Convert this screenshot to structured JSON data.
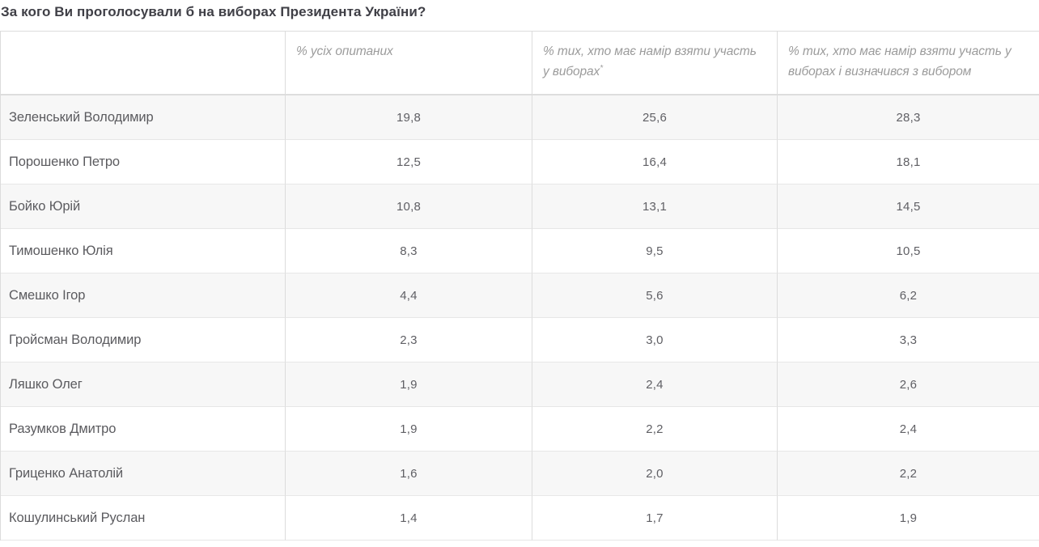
{
  "page": {
    "title": "За кого Ви проголосували б на виборах Президента України?"
  },
  "table": {
    "headers": [
      "",
      "% усіх опитаних",
      "% тих, хто має намір взяти участь у виборах",
      "% тих, хто має намір взяти участь у виборах і визначився з вибором"
    ],
    "header_footnote_mark": "*",
    "rows": [
      {
        "name": "Зеленський Володимир",
        "values": [
          "19,8",
          "25,6",
          "28,3"
        ]
      },
      {
        "name": "Порошенко Петро",
        "values": [
          "12,5",
          "16,4",
          "18,1"
        ]
      },
      {
        "name": "Бойко Юрій",
        "values": [
          "10,8",
          "13,1",
          "14,5"
        ]
      },
      {
        "name": "Тимошенко Юлія",
        "values": [
          "8,3",
          "9,5",
          "10,5"
        ]
      },
      {
        "name": "Смешко Ігор",
        "values": [
          "4,4",
          "5,6",
          "6,2"
        ]
      },
      {
        "name": "Гройсман Володимир",
        "values": [
          "2,3",
          "3,0",
          "3,3"
        ]
      },
      {
        "name": "Ляшко Олег",
        "values": [
          "1,9",
          "2,4",
          "2,6"
        ]
      },
      {
        "name": "Разумков Дмитро",
        "values": [
          "1,9",
          "2,2",
          "2,4"
        ]
      },
      {
        "name": "Гриценко Анатолій",
        "values": [
          "1,6",
          "2,0",
          "2,2"
        ]
      },
      {
        "name": "Кошулинський Руслан",
        "values": [
          "1,4",
          "1,7",
          "1,9"
        ]
      }
    ]
  },
  "colors": {
    "zebra_row": "#f7f7f7",
    "grid_border": "#dcdcdc",
    "row_separator": "#e7e7e7",
    "title_text": "#3f3f46",
    "header_text": "#9b9b9b",
    "cell_text": "#5b5b5f"
  },
  "chart_data": {
    "type": "table",
    "title": "За кого Ви проголосували б на виборах Президента України?",
    "categories": [
      "Зеленський Володимир",
      "Порошенко Петро",
      "Бойко Юрій",
      "Тимошенко Юлія",
      "Смешко Ігор",
      "Гройсман Володимир",
      "Ляшко Олег",
      "Разумков Дмитро",
      "Гриценко Анатолій",
      "Кошулинський Руслан"
    ],
    "series": [
      {
        "name": "% усіх опитаних",
        "values": [
          19.8,
          12.5,
          10.8,
          8.3,
          4.4,
          2.3,
          1.9,
          1.9,
          1.6,
          1.4
        ]
      },
      {
        "name": "% тих, хто має намір взяти участь у виборах*",
        "values": [
          25.6,
          16.4,
          13.1,
          9.5,
          5.6,
          3.0,
          2.4,
          2.2,
          2.0,
          1.7
        ]
      },
      {
        "name": "% тих, хто має намір взяти участь у виборах і визначився з вибором",
        "values": [
          28.3,
          18.1,
          14.5,
          10.5,
          6.2,
          3.3,
          2.6,
          2.4,
          2.2,
          1.9
        ]
      }
    ]
  }
}
